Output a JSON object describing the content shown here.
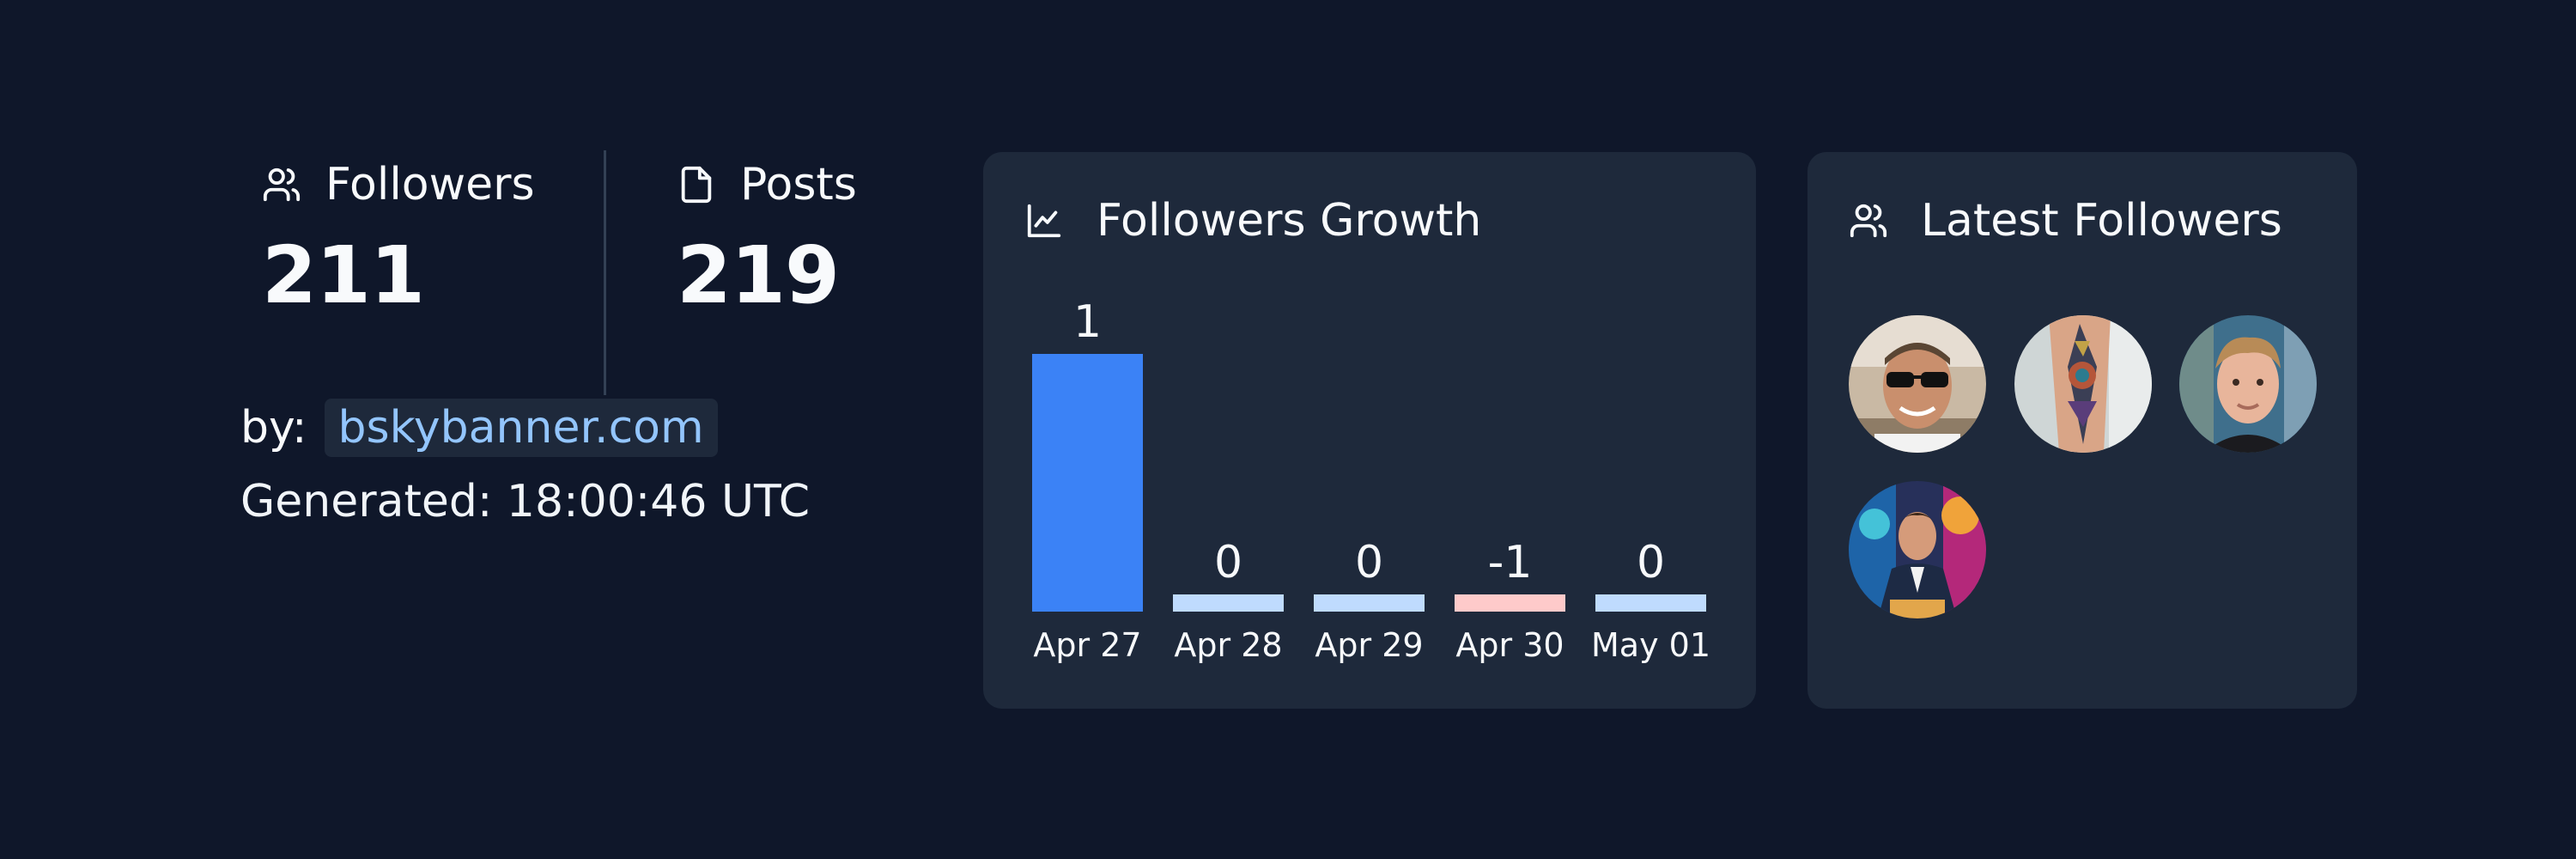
{
  "stats": {
    "followers": {
      "label": "Followers",
      "value": "211",
      "icon": "users-icon"
    },
    "posts": {
      "label": "Posts",
      "value": "219",
      "icon": "file-icon"
    }
  },
  "credit": {
    "prefix": "by:",
    "link": "bskybanner.com"
  },
  "generated": "Generated: 18:00:46 UTC",
  "growth": {
    "title": "Followers Growth",
    "icon": "line-chart-icon"
  },
  "latest": {
    "title": "Latest Followers",
    "icon": "users-icon",
    "avatars": [
      "avatar-man-sunglasses",
      "avatar-tattoo-arm",
      "avatar-young-man",
      "avatar-suit-man"
    ]
  },
  "colors": {
    "background": "#0f172a",
    "card": "#1e293b",
    "positive": "#3b82f6",
    "zero": "#bfdbfe",
    "negative": "#fecaca",
    "link": "#93c5fd"
  },
  "chart_data": {
    "type": "bar",
    "title": "Followers Growth",
    "categories": [
      "Apr 27",
      "Apr 28",
      "Apr 29",
      "Apr 30",
      "May 01"
    ],
    "values": [
      1,
      0,
      0,
      -1,
      0
    ],
    "value_labels": [
      "1",
      "0",
      "0",
      "-1",
      "0"
    ],
    "xlabel": "",
    "ylabel": "",
    "ylim": [
      0,
      1
    ],
    "grid": false,
    "legend": "none"
  }
}
